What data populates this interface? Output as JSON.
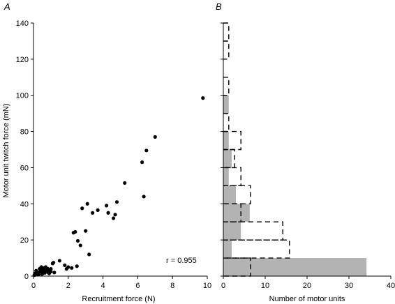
{
  "chart_data": [
    {
      "panel": "A",
      "type": "scatter",
      "xlabel": "Recruitment force (N)",
      "ylabel": "Motor unit twitch force (mN)",
      "xlim": [
        0,
        10
      ],
      "ylim": [
        0,
        140
      ],
      "xticks": [
        0,
        2,
        4,
        6,
        8,
        10
      ],
      "yticks": [
        0,
        20,
        40,
        60,
        80,
        100,
        120,
        140
      ],
      "annotation": "r = 0.955",
      "marker_color": "#000000",
      "points": [
        [
          0.05,
          0.5
        ],
        [
          0.1,
          1.5
        ],
        [
          0.15,
          3.0
        ],
        [
          0.2,
          1.0
        ],
        [
          0.25,
          2.0
        ],
        [
          0.3,
          0.8
        ],
        [
          0.35,
          4.0
        ],
        [
          0.4,
          2.5
        ],
        [
          0.45,
          5.0
        ],
        [
          0.5,
          3.5
        ],
        [
          0.5,
          1.2
        ],
        [
          0.55,
          4.5
        ],
        [
          0.6,
          2.2
        ],
        [
          0.6,
          3.8
        ],
        [
          0.65,
          1.8
        ],
        [
          0.7,
          5.0
        ],
        [
          0.7,
          2.8
        ],
        [
          0.75,
          3.2
        ],
        [
          0.8,
          4.2
        ],
        [
          0.85,
          2.0
        ],
        [
          0.9,
          3.0
        ],
        [
          0.9,
          1.5
        ],
        [
          1.0,
          2.5
        ],
        [
          1.0,
          4.0
        ],
        [
          1.1,
          7.0
        ],
        [
          1.15,
          7.5
        ],
        [
          1.2,
          2.0
        ],
        [
          1.5,
          8.5
        ],
        [
          1.8,
          6.0
        ],
        [
          1.9,
          4.0
        ],
        [
          2.0,
          5.0
        ],
        [
          2.2,
          4.5
        ],
        [
          2.3,
          24.0
        ],
        [
          2.4,
          24.5
        ],
        [
          2.5,
          5.5
        ],
        [
          2.55,
          19.5
        ],
        [
          2.7,
          17.0
        ],
        [
          2.8,
          37.5
        ],
        [
          3.0,
          25.0
        ],
        [
          3.1,
          40.0
        ],
        [
          3.2,
          12.0
        ],
        [
          3.4,
          35.0
        ],
        [
          3.7,
          36.5
        ],
        [
          4.2,
          39.0
        ],
        [
          4.3,
          35.0
        ],
        [
          4.6,
          32.0
        ],
        [
          4.7,
          34.0
        ],
        [
          4.8,
          41.0
        ],
        [
          5.25,
          51.5
        ],
        [
          6.25,
          63.0
        ],
        [
          6.35,
          44.0
        ],
        [
          6.5,
          69.5
        ],
        [
          7.0,
          77.0
        ],
        [
          9.75,
          98.5
        ]
      ]
    },
    {
      "panel": "B",
      "type": "bar",
      "orientation": "horizontal",
      "xlabel": "Number of motor units",
      "xlim": [
        0,
        40
      ],
      "xticks": [
        0,
        10,
        20,
        30,
        40
      ],
      "ylim": [
        0,
        140
      ],
      "bin_width": 10,
      "bins": [
        0,
        10,
        20,
        30,
        40,
        50,
        60,
        70,
        80,
        90,
        100,
        110,
        120,
        130
      ],
      "series": [
        {
          "style": "filled",
          "color": "#b3b3b3",
          "values": [
            34.2,
            2.0,
            4.2,
            6.3,
            3.0,
            1.3,
            2.0,
            1.3,
            0,
            1.3,
            0,
            0,
            0,
            0
          ]
        },
        {
          "style": "dashed-outline",
          "color": "#000000",
          "values": [
            6.5,
            15.8,
            14.2,
            4.2,
            6.5,
            4.2,
            2.7,
            4.2,
            1.3,
            0,
            1.3,
            0,
            1.3,
            1.3
          ]
        }
      ]
    }
  ]
}
